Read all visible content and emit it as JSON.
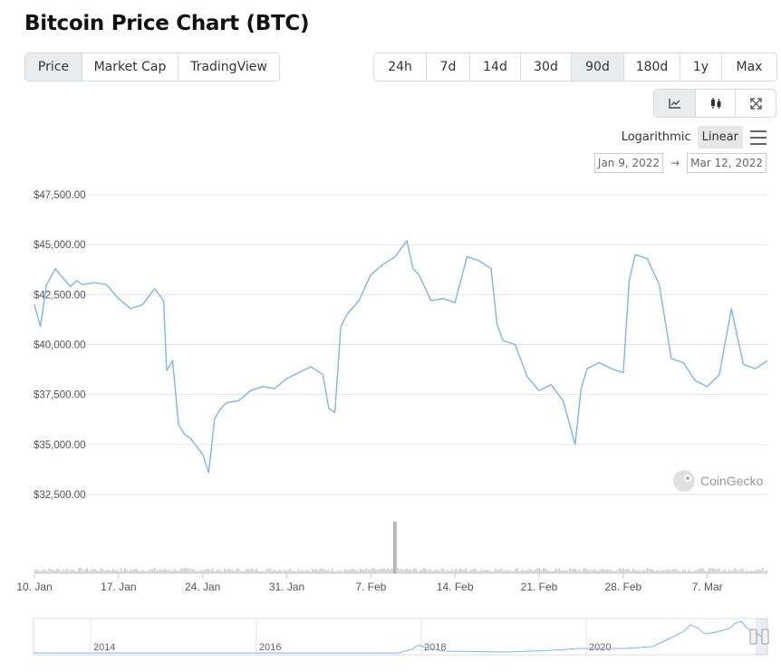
{
  "page": {
    "title": "Bitcoin Price Chart (BTC)"
  },
  "tabs": [
    {
      "label": "Price",
      "active": true
    },
    {
      "label": "Market Cap",
      "active": false
    },
    {
      "label": "TradingView",
      "active": false
    }
  ],
  "ranges": [
    {
      "label": "24h",
      "active": false
    },
    {
      "label": "7d",
      "active": false
    },
    {
      "label": "14d",
      "active": false
    },
    {
      "label": "30d",
      "active": false
    },
    {
      "label": "90d",
      "active": true
    },
    {
      "label": "180d",
      "active": false
    },
    {
      "label": "1y",
      "active": false
    },
    {
      "label": "Max",
      "active": false
    }
  ],
  "view_buttons": [
    {
      "icon": "line-chart-icon",
      "active": true
    },
    {
      "icon": "candlestick-icon",
      "active": false
    },
    {
      "icon": "expand-icon",
      "active": false
    }
  ],
  "scale": {
    "logarithmic": "Logarithmic",
    "linear": "Linear",
    "active": "linear"
  },
  "date_range": {
    "from": "Jan 9, 2022",
    "to": "Mar 12, 2022",
    "arrow": "→"
  },
  "watermark": "CoinGecko",
  "colors": {
    "line": "#7cb5ec",
    "volume": "#d0d0d0",
    "volume_spike": "#b8b8b8",
    "grid": "#e6e6e6",
    "active_tab": "#e9ecef"
  },
  "chart_data": {
    "type": "line",
    "title": "",
    "xlabel": "",
    "ylabel": "",
    "ylim": [
      32500,
      47500
    ],
    "y_ticks": [
      "$47,500.00",
      "$45,000.00",
      "$42,500.00",
      "$40,000.00",
      "$37,500.00",
      "$35,000.00",
      "$32,500.00"
    ],
    "y_tick_values": [
      47500,
      45000,
      42500,
      40000,
      37500,
      35000,
      32500
    ],
    "x_range": [
      "2022-01-10",
      "2022-03-12"
    ],
    "x_ticks": [
      "10. Jan",
      "17. Jan",
      "24. Jan",
      "31. Jan",
      "7. Feb",
      "14. Feb",
      "21. Feb",
      "28. Feb",
      "7. Mar"
    ],
    "x_tick_dates": [
      "2022-01-10",
      "2022-01-17",
      "2022-01-24",
      "2022-01-31",
      "2022-02-07",
      "2022-02-14",
      "2022-02-21",
      "2022-02-28",
      "2022-03-07"
    ],
    "series": [
      {
        "x": [
          "2022-01-10",
          "2022-01-10T12:00",
          "2022-01-11",
          "2022-01-11T18:00",
          "2022-01-12",
          "2022-01-13",
          "2022-01-13T12:00",
          "2022-01-14",
          "2022-01-15",
          "2022-01-16",
          "2022-01-17",
          "2022-01-18",
          "2022-01-19",
          "2022-01-20",
          "2022-01-20T18:00",
          "2022-01-21",
          "2022-01-21T12:00",
          "2022-01-22",
          "2022-01-22T12:00",
          "2022-01-23",
          "2022-01-24",
          "2022-01-24T12:00",
          "2022-01-25",
          "2022-01-25T12:00",
          "2022-01-26",
          "2022-01-27",
          "2022-01-28",
          "2022-01-29",
          "2022-01-30",
          "2022-01-31",
          "2022-02-01",
          "2022-02-02",
          "2022-02-03",
          "2022-02-03T12:00",
          "2022-02-04",
          "2022-02-04T12:00",
          "2022-02-05",
          "2022-02-06",
          "2022-02-07",
          "2022-02-08",
          "2022-02-09",
          "2022-02-10",
          "2022-02-10T12:00",
          "2022-02-11",
          "2022-02-12",
          "2022-02-13",
          "2022-02-14",
          "2022-02-15",
          "2022-02-16",
          "2022-02-17",
          "2022-02-17T12:00",
          "2022-02-18",
          "2022-02-19",
          "2022-02-20",
          "2022-02-21",
          "2022-02-22",
          "2022-02-23",
          "2022-02-24",
          "2022-02-24T12:00",
          "2022-02-25",
          "2022-02-26",
          "2022-02-27",
          "2022-02-28",
          "2022-02-28T12:00",
          "2022-03-01",
          "2022-03-02",
          "2022-03-03",
          "2022-03-04",
          "2022-03-05",
          "2022-03-06",
          "2022-03-07",
          "2022-03-08",
          "2022-03-09",
          "2022-03-10",
          "2022-03-11",
          "2022-03-12"
        ],
        "values": [
          42000,
          40900,
          43000,
          43800,
          43600,
          42900,
          43200,
          43000,
          43100,
          43000,
          42300,
          41800,
          42000,
          42800,
          42200,
          38700,
          39200,
          36000,
          35500,
          35300,
          34500,
          33600,
          36300,
          36800,
          37100,
          37200,
          37700,
          37900,
          37800,
          38300,
          38600,
          38900,
          38500,
          36800,
          36600,
          40900,
          41500,
          42200,
          43500,
          44000,
          44400,
          45200,
          43800,
          43500,
          42200,
          42300,
          42100,
          44400,
          44200,
          43800,
          41000,
          40200,
          40000,
          38400,
          37700,
          38000,
          37200,
          35000,
          37800,
          38800,
          39100,
          38800,
          38600,
          43200,
          44500,
          44300,
          43000,
          39300,
          39100,
          38200,
          37900,
          38500,
          41800,
          39000,
          38800,
          39200
        ]
      }
    ],
    "volume_spike_date": "2022-02-09",
    "navigator": {
      "x_ticks": [
        "2014",
        "2016",
        "2018",
        "2020"
      ]
    }
  }
}
